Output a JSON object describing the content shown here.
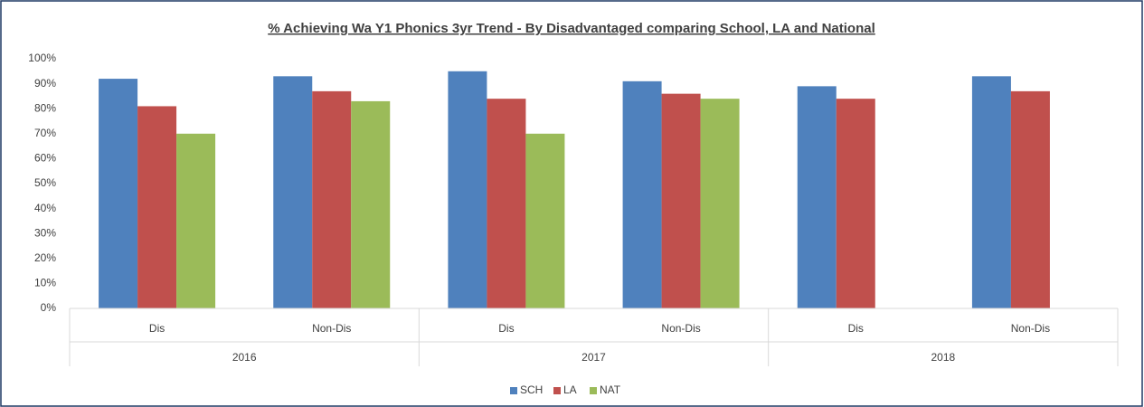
{
  "chart_data": {
    "type": "bar",
    "title": "% Achieving Wa Y1 Phonics 3yr Trend - By Disadvantaged comparing School, LA and National",
    "categories": [
      "Dis",
      "Non-Dis",
      "Dis",
      "Non-Dis",
      "Dis",
      "Non-Dis"
    ],
    "category_groups": [
      "2016",
      "2017",
      "2018"
    ],
    "series": [
      {
        "name": "SCH",
        "color": "#4f81bd",
        "values": [
          92,
          93,
          95,
          91,
          89,
          93
        ]
      },
      {
        "name": "LA",
        "color": "#c0504d",
        "values": [
          81,
          87,
          84,
          86,
          84,
          87
        ]
      },
      {
        "name": "NAT",
        "color": "#9bbb59",
        "values": [
          70,
          83,
          70,
          84,
          null,
          null
        ]
      }
    ],
    "ylim": [
      0,
      100
    ],
    "yticks": [
      {
        "value": 0,
        "label": "0%"
      },
      {
        "value": 10,
        "label": "10%"
      },
      {
        "value": 20,
        "label": "20%"
      },
      {
        "value": 30,
        "label": "30%"
      },
      {
        "value": 40,
        "label": "40%"
      },
      {
        "value": 50,
        "label": "50%"
      },
      {
        "value": 60,
        "label": "60%"
      },
      {
        "value": 70,
        "label": "70%"
      },
      {
        "value": 80,
        "label": "80%"
      },
      {
        "value": 90,
        "label": "90%"
      },
      {
        "value": 100,
        "label": "100%"
      }
    ],
    "grid": false,
    "legend": "bottom"
  }
}
